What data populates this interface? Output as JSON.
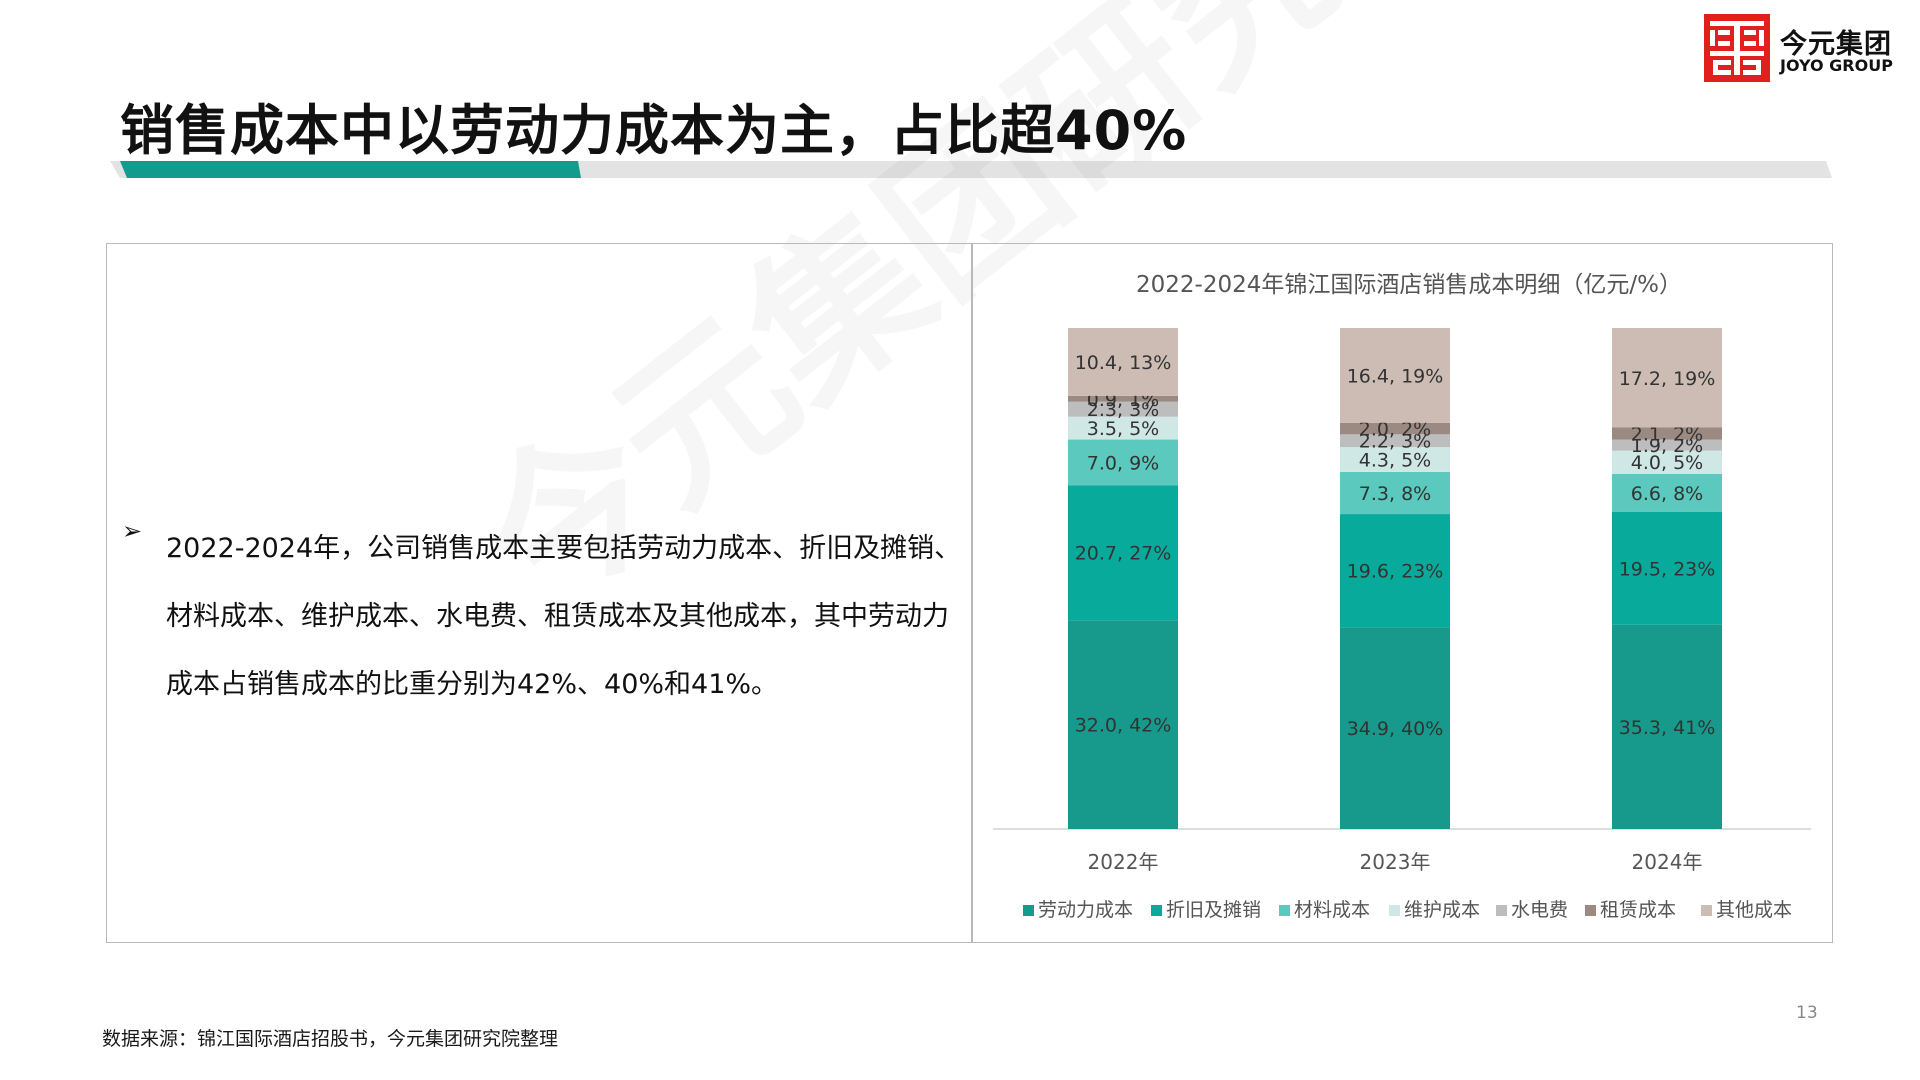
{
  "brand": {
    "name_cn": "今元集团",
    "name_en": "JOYO GROUP",
    "color": "#e0201c"
  },
  "page": {
    "title": "销售成本中以劳动力成本为主，占比超40%",
    "page_number": "13",
    "watermark": "今元集团研究院",
    "accent_color": "#139b8e",
    "bar_color": "#e3e3e3"
  },
  "bullet": {
    "icon": "arrow-bullet-icon",
    "text": "2022-2024年，公司销售成本主要包括劳动力成本、折旧及摊销、材料成本、维护成本、水电费、租赁成本及其他成本，其中劳动力成本占销售成本的比重分别为42%、40%和41%。"
  },
  "source": "数据来源：锦江国际酒店招股书，今元集团研究院整理",
  "chart_data": {
    "type": "bar",
    "stacked": true,
    "title": "2022-2024年锦江国际酒店销售成本明细（亿元/%）",
    "categories": [
      "2022年",
      "2023年",
      "2024年"
    ],
    "legend_position": "bottom",
    "grid": false,
    "series": [
      {
        "name": "劳动力成本",
        "color": "#17998b",
        "values": [
          32.0,
          34.9,
          35.3
        ],
        "labels": [
          "32.0, 42%",
          "34.9, 40%",
          "35.3, 41%"
        ]
      },
      {
        "name": "折旧及摊销",
        "color": "#07aa9b",
        "values": [
          20.7,
          19.6,
          19.5
        ],
        "labels": [
          "20.7, 27%",
          "19.6, 23%",
          "19.5, 23%"
        ]
      },
      {
        "name": "材料成本",
        "color": "#5cc9be",
        "values": [
          7.0,
          7.3,
          6.6
        ],
        "labels": [
          "7.0, 9%",
          "7.3, 8%",
          "6.6, 8%"
        ]
      },
      {
        "name": "维护成本",
        "color": "#cfe8e6",
        "values": [
          3.5,
          4.3,
          4.0
        ],
        "labels": [
          "3.5, 5%",
          "4.3, 5%",
          "4.0, 5%"
        ]
      },
      {
        "name": "水电费",
        "color": "#bdbdbd",
        "values": [
          2.3,
          2.2,
          1.9
        ],
        "labels": [
          "2.3, 3%",
          "2.2, 3%",
          "1.9, 2%"
        ]
      },
      {
        "name": "租赁成本",
        "color": "#9b8a82",
        "values": [
          0.9,
          2.0,
          2.1
        ],
        "labels": [
          "0.9, 1%",
          "2.0, 2%",
          "2.1, 2%"
        ]
      },
      {
        "name": "其他成本",
        "color": "#cdbcb3",
        "values": [
          10.4,
          16.4,
          17.2
        ],
        "labels": [
          "10.4, 13%",
          "16.4, 19%",
          "17.2, 19%"
        ]
      }
    ]
  }
}
